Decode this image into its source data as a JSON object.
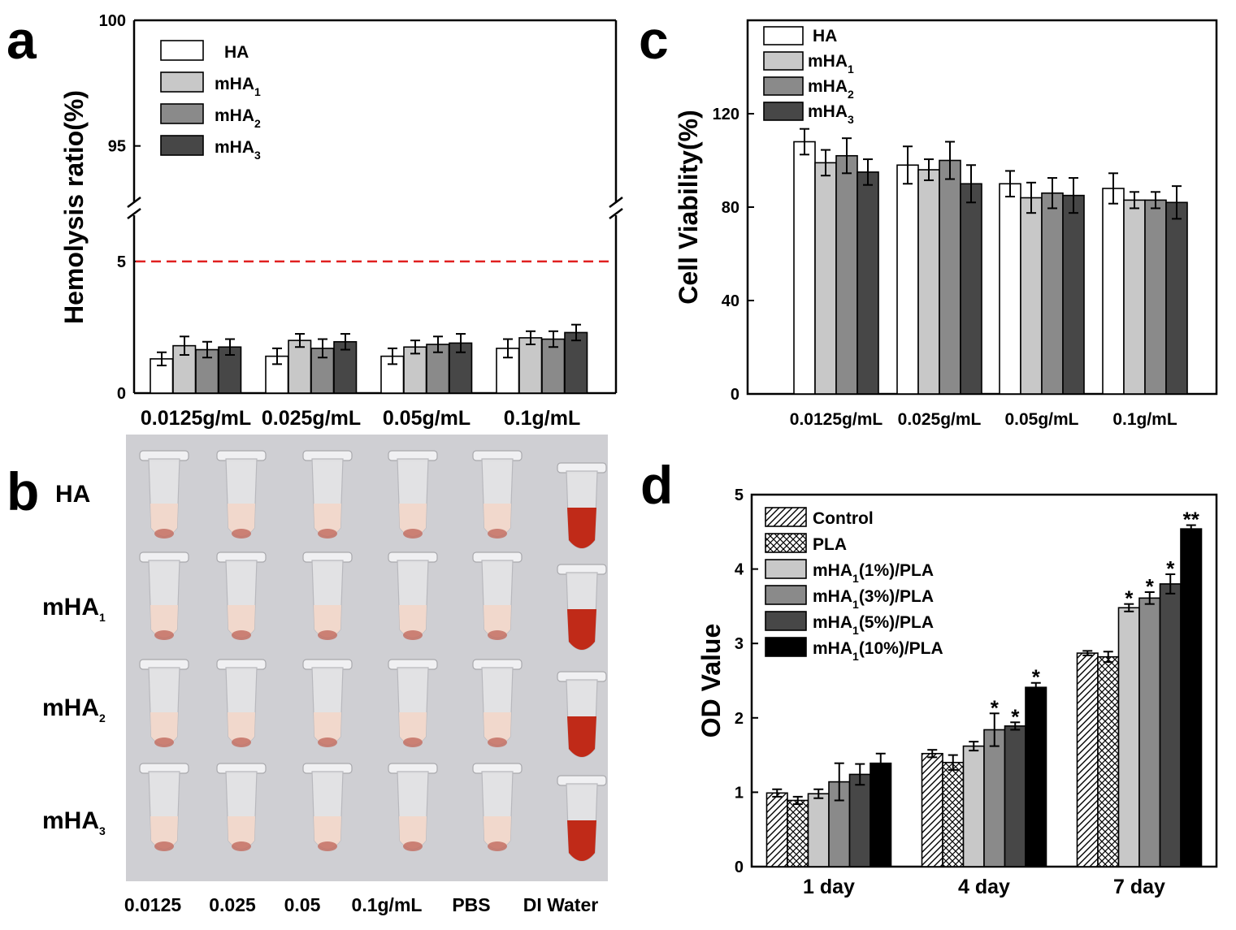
{
  "panels": {
    "a": {
      "letter": "a"
    },
    "b": {
      "letter": "b"
    },
    "c": {
      "letter": "c"
    },
    "d": {
      "letter": "d"
    }
  },
  "photo": {
    "row_labels": [
      {
        "base": "HA",
        "sub": ""
      },
      {
        "base": "mHA",
        "sub": "1"
      },
      {
        "base": "mHA",
        "sub": "2"
      },
      {
        "base": "mHA",
        "sub": "3"
      }
    ],
    "column_labels": [
      "0.0125",
      "0.025",
      "0.05",
      "0.1g/mL",
      "PBS",
      "DI Water"
    ],
    "colors": {
      "background": "#cfcfd3",
      "blood": "#c02a18",
      "pale": "#f1d8cc",
      "tube": "#e3e3e6"
    }
  },
  "colors": {
    "HA": "#ffffff",
    "mHA1": "#c8c8c8",
    "mHA2": "#8a8a8a",
    "mHA3": "#474747",
    "threshold": "#e02020"
  },
  "chart_data": [
    {
      "id": "a",
      "type": "bar",
      "ylabel": "Hemolysis ratio(%)",
      "categories": [
        "0.0125g/mL",
        "0.025g/mL",
        "0.05g/mL",
        "0.1g/mL"
      ],
      "broken_axis": {
        "lower_range": [
          0,
          7
        ],
        "upper_range": [
          92.5,
          100
        ]
      },
      "yticks": [
        0,
        5,
        95,
        100
      ],
      "reference_line": {
        "y": 5,
        "style": "dashed",
        "color": "#e02020"
      },
      "series": [
        {
          "name": "HA",
          "sub": "",
          "color": "#ffffff",
          "values": [
            1.3,
            1.4,
            1.4,
            1.7
          ],
          "errors": [
            0.25,
            0.3,
            0.3,
            0.35
          ]
        },
        {
          "name": "mHA",
          "sub": "1",
          "color": "#c8c8c8",
          "values": [
            1.8,
            2.0,
            1.75,
            2.1
          ],
          "errors": [
            0.35,
            0.25,
            0.25,
            0.25
          ]
        },
        {
          "name": "mHA",
          "sub": "2",
          "color": "#8a8a8a",
          "values": [
            1.65,
            1.7,
            1.85,
            2.05
          ],
          "errors": [
            0.3,
            0.35,
            0.3,
            0.3
          ]
        },
        {
          "name": "mHA",
          "sub": "3",
          "color": "#474747",
          "values": [
            1.75,
            1.95,
            1.9,
            2.3
          ],
          "errors": [
            0.3,
            0.3,
            0.35,
            0.3
          ]
        }
      ]
    },
    {
      "id": "c",
      "type": "bar",
      "ylabel": "Cell Viability(%)",
      "categories": [
        "0.0125g/mL",
        "0.025g/mL",
        "0.05g/mL",
        "0.1g/mL"
      ],
      "ylim": [
        0,
        160
      ],
      "yticks": [
        0,
        40,
        80,
        120
      ],
      "series": [
        {
          "name": "HA",
          "sub": "",
          "color": "#ffffff",
          "values": [
            108,
            98,
            90,
            88
          ],
          "errors": [
            5.5,
            8,
            5.5,
            6.5
          ]
        },
        {
          "name": "mHA",
          "sub": "1",
          "color": "#c8c8c8",
          "values": [
            99,
            96,
            84,
            83
          ],
          "errors": [
            5.5,
            4.5,
            6.5,
            3.5
          ]
        },
        {
          "name": "mHA",
          "sub": "2",
          "color": "#8a8a8a",
          "values": [
            102,
            100,
            86,
            83
          ],
          "errors": [
            7.5,
            8,
            6.5,
            3.5
          ]
        },
        {
          "name": "mHA",
          "sub": "3",
          "color": "#474747",
          "values": [
            95,
            90,
            85,
            82
          ],
          "errors": [
            5.5,
            8,
            7.5,
            7
          ]
        }
      ]
    },
    {
      "id": "d",
      "type": "bar",
      "ylabel": "OD Value",
      "categories": [
        "1 day",
        "4 day",
        "7 day"
      ],
      "ylim": [
        0,
        5
      ],
      "yticks": [
        0,
        1,
        2,
        3,
        4,
        5
      ],
      "series": [
        {
          "name": "Control",
          "sub": "",
          "suffix": "",
          "pattern": "hatch",
          "color": "#ffffff",
          "values": [
            0.99,
            1.52,
            2.87
          ],
          "errors": [
            0.05,
            0.05,
            0.03
          ],
          "sig": [
            "",
            "",
            ""
          ]
        },
        {
          "name": "PLA",
          "sub": "",
          "suffix": "",
          "pattern": "cross",
          "color": "#ffffff",
          "values": [
            0.89,
            1.4,
            2.82
          ],
          "errors": [
            0.05,
            0.1,
            0.07
          ],
          "sig": [
            "",
            "",
            ""
          ]
        },
        {
          "name": "mHA",
          "sub": "1",
          "suffix": "(1%)/PLA",
          "pattern": "solid",
          "color": "#c8c8c8",
          "values": [
            0.98,
            1.62,
            3.48
          ],
          "errors": [
            0.06,
            0.06,
            0.05
          ],
          "sig": [
            "",
            "",
            "*"
          ]
        },
        {
          "name": "mHA",
          "sub": "1",
          "suffix": "(3%)/PLA",
          "pattern": "solid",
          "color": "#8a8a8a",
          "values": [
            1.14,
            1.84,
            3.61
          ],
          "errors": [
            0.25,
            0.22,
            0.08
          ],
          "sig": [
            "",
            "*",
            "*"
          ]
        },
        {
          "name": "mHA",
          "sub": "1",
          "suffix": "(5%)/PLA",
          "pattern": "solid",
          "color": "#474747",
          "values": [
            1.24,
            1.89,
            3.8
          ],
          "errors": [
            0.14,
            0.05,
            0.13
          ],
          "sig": [
            "",
            "*",
            "*"
          ]
        },
        {
          "name": "mHA",
          "sub": "1",
          "suffix": "(10%)/PLA",
          "pattern": "solid",
          "color": "#000000",
          "values": [
            1.39,
            2.41,
            4.54
          ],
          "errors": [
            0.13,
            0.06,
            0.05
          ],
          "sig": [
            "",
            "*",
            "**"
          ]
        }
      ]
    }
  ]
}
